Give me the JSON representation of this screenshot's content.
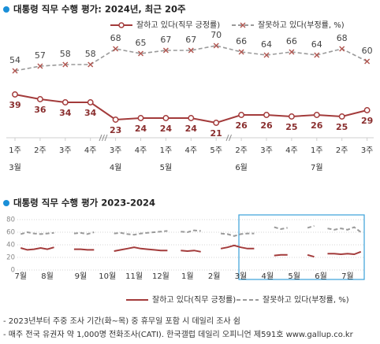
{
  "chart_data": [
    {
      "type": "line",
      "title": "대통령 직무 수행 평가: 2024년, 최근 20주",
      "categories": [
        "1주",
        "2주",
        "3주",
        "4주",
        "3주",
        "4주",
        "1주",
        "4주",
        "5주",
        "2주",
        "3주",
        "4주",
        "1주",
        "2주",
        "3주"
      ],
      "months": [
        "3월",
        null,
        null,
        null,
        "4월",
        null,
        "5월",
        null,
        null,
        "6월",
        null,
        null,
        "7월",
        null,
        null
      ],
      "series": [
        {
          "name": "잘하고 있다(직무 긍정률)",
          "color": "#a33b3b",
          "values": [
            39,
            36,
            34,
            34,
            23,
            24,
            24,
            24,
            21,
            26,
            26,
            25,
            26,
            25,
            29
          ]
        },
        {
          "name": "잘못하고 있다(부정률, %)",
          "color": "#9a9a9a",
          "values": [
            54,
            57,
            58,
            58,
            68,
            65,
            67,
            67,
            70,
            66,
            64,
            66,
            64,
            68,
            60
          ]
        }
      ]
    },
    {
      "type": "line",
      "title": "대통령 직무 수행 평가 2023-2024",
      "categories": [
        "7월",
        null,
        null,
        null,
        "8월",
        null,
        null,
        null,
        null,
        "9월",
        null,
        null,
        null,
        "10월",
        null,
        null,
        null,
        "11월",
        null,
        null,
        null,
        "12월",
        null,
        null,
        null,
        "1월",
        null,
        null,
        null,
        "2월",
        null,
        null,
        null,
        "3월",
        null,
        null,
        null,
        "4월",
        null,
        null,
        null,
        "5월",
        null,
        null,
        null,
        "6월",
        null,
        null,
        null,
        "7월",
        null,
        null
      ],
      "ylim": [
        0,
        80
      ],
      "yticks": [
        0,
        20,
        40,
        60,
        80
      ],
      "grid": true,
      "series": [
        {
          "name": "잘하고 있다(직무 긍정률)",
          "color": "#a33b3b",
          "values": [
            35,
            32,
            33,
            35,
            33,
            36,
            null,
            null,
            33,
            33,
            32,
            32,
            null,
            null,
            30,
            32,
            34,
            36,
            34,
            33,
            32,
            31,
            31,
            null,
            31,
            30,
            31,
            29,
            null,
            null,
            34,
            36,
            39,
            36,
            34,
            34,
            null,
            null,
            23,
            24,
            24,
            null,
            null,
            24,
            21,
            null,
            26,
            26,
            25,
            26,
            25,
            29
          ]
        },
        {
          "name": "잘못하고 있다(부정률, %)",
          "color": "#9a9a9a",
          "values": [
            57,
            60,
            58,
            57,
            58,
            59,
            null,
            null,
            58,
            59,
            57,
            60,
            null,
            null,
            58,
            59,
            57,
            56,
            58,
            59,
            60,
            61,
            62,
            null,
            61,
            60,
            63,
            62,
            null,
            null,
            58,
            57,
            54,
            57,
            58,
            58,
            null,
            null,
            68,
            65,
            67,
            null,
            null,
            67,
            70,
            null,
            66,
            64,
            66,
            64,
            68,
            60
          ]
        }
      ]
    }
  ],
  "notes": [
    "- 2023년부터 주중 조사 기간(화~목) 중 휴무일 포함 시 데일리 조사 쉼",
    "- 매주 전국 유권자 약 1,000명 전화조사(CATI). 한국갤럽 데일리 오피니언 제591호 www.gallup.co.kr"
  ]
}
